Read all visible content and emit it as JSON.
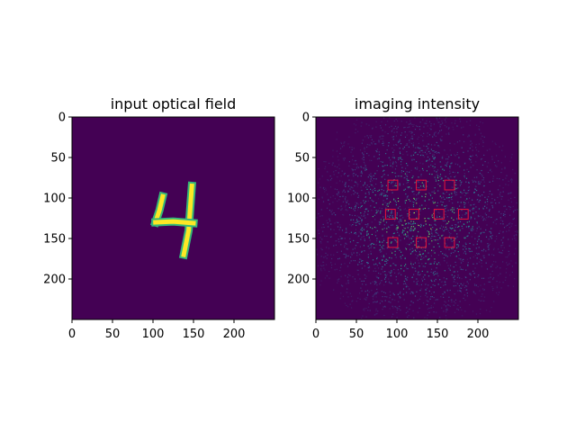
{
  "chart_data": [
    {
      "type": "heatmap",
      "title": "input optical field",
      "xlabel": "",
      "ylabel": "",
      "xlim": [
        0,
        250
      ],
      "ylim": [
        250,
        0
      ],
      "xticks": [
        0,
        50,
        100,
        150,
        200
      ],
      "yticks": [
        0,
        50,
        100,
        150,
        200
      ],
      "colormap": "viridis",
      "background_color": "#440154",
      "stroke_color": "#fde725",
      "edge_color": "#35b779",
      "digit_strokes": [
        [
          [
            148,
            85
          ],
          [
            146,
            112
          ],
          [
            144,
            140
          ],
          [
            138,
            170
          ]
        ],
        [
          [
            112,
            98
          ],
          [
            108,
            115
          ],
          [
            103,
            130
          ]
        ],
        [
          [
            103,
            130
          ],
          [
            125,
            129
          ],
          [
            150,
            131
          ]
        ]
      ],
      "grid": false,
      "legend": "none"
    },
    {
      "type": "heatmap",
      "title": "imaging intensity",
      "xlabel": "",
      "ylabel": "",
      "xlim": [
        0,
        250
      ],
      "ylim": [
        250,
        0
      ],
      "xticks": [
        0,
        50,
        100,
        150,
        200
      ],
      "yticks": [
        0,
        50,
        100,
        150,
        200
      ],
      "colormap": "viridis",
      "background_color": "#440154",
      "speckle_center": [
        125,
        125
      ],
      "detector_color": "#e8123a",
      "detector_size": 12,
      "detector_regions": [
        [
          95,
          84
        ],
        [
          130,
          84
        ],
        [
          165,
          84
        ],
        [
          92,
          120
        ],
        [
          121,
          120
        ],
        [
          152,
          120
        ],
        [
          182,
          120
        ],
        [
          95,
          155
        ],
        [
          130,
          155
        ],
        [
          165,
          155
        ]
      ],
      "grid": false,
      "legend": "none"
    }
  ]
}
